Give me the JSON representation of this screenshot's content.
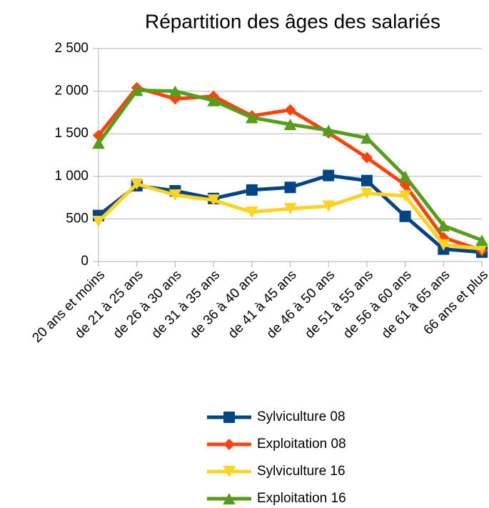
{
  "chart_data": {
    "type": "line",
    "title": "Répartition des âges des salariés",
    "categories": [
      "20 ans et moins",
      "de 21 à 25 ans",
      "de 26 à 30 ans",
      "de 31 à 35 ans",
      "de 36 à 40 ans",
      "de 41 à 45 ans",
      "de 46 à 50 ans",
      "de 51 à 55 ans",
      "de 56 à 60 ans",
      "de 61 à 65 ans",
      "66 ans et plus"
    ],
    "series": [
      {
        "name": "Sylviculture 08",
        "color": "#004586",
        "marker": "square",
        "values": [
          540,
          890,
          830,
          740,
          840,
          870,
          1010,
          950,
          530,
          145,
          110
        ]
      },
      {
        "name": "Exploitation 08",
        "color": "#ff420e",
        "marker": "diamond",
        "values": [
          1480,
          2040,
          1910,
          1940,
          1710,
          1780,
          1510,
          1220,
          900,
          280,
          130
        ]
      },
      {
        "name": "Sylviculture 16",
        "color": "#ffd320",
        "marker": "triangle-down",
        "values": [
          470,
          910,
          780,
          720,
          580,
          620,
          650,
          800,
          770,
          195,
          150
        ]
      },
      {
        "name": "Exploitation 16",
        "color": "#579d1c",
        "marker": "triangle-up",
        "values": [
          1390,
          2010,
          2000,
          1890,
          1690,
          1610,
          1540,
          1450,
          1000,
          420,
          250
        ]
      }
    ],
    "ylim": [
      0,
      2500
    ],
    "yticks": [
      0,
      {
        "value": 500,
        "label": "500"
      },
      {
        "value": 1000,
        "label": "1 000"
      },
      {
        "value": 1500,
        "label": "1 500"
      },
      {
        "value": 2000,
        "label": "2 000"
      },
      {
        "value": 2500,
        "label": "2 500"
      }
    ],
    "grid": true,
    "legend": "bottom"
  }
}
